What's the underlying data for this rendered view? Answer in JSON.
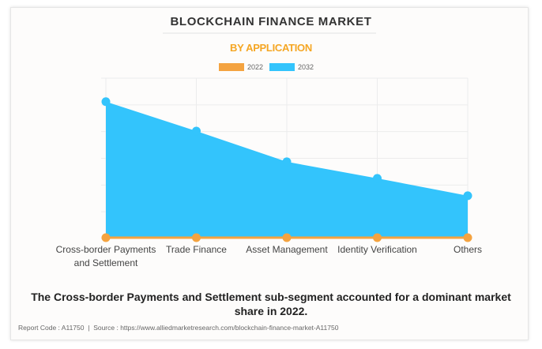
{
  "header": {
    "title": "BLOCKCHAIN FINANCE MARKET",
    "subtitle": "BY APPLICATION"
  },
  "legend": [
    {
      "label": "2022",
      "color": "#f4a340"
    },
    {
      "label": "2032",
      "color": "#33c4fc"
    }
  ],
  "x_labels": [
    {
      "line1": "Cross-border Payments",
      "line2": "and Settlement"
    },
    {
      "line1": "Trade Finance",
      "line2": ""
    },
    {
      "line1": "Asset Management",
      "line2": ""
    },
    {
      "line1": "Identity Verification",
      "line2": ""
    },
    {
      "line1": "Others",
      "line2": ""
    }
  ],
  "caption": "The Cross-border Payments and Settlement sub-segment accounted for a dominant market share in 2022.",
  "footer": {
    "report_code": "Report Code : A11750",
    "separator": "|",
    "source": "Source : https://www.alliedmarketresearch.com/blockchain-finance-market-A11750"
  },
  "chart_data": {
    "type": "area",
    "title": "BLOCKCHAIN FINANCE MARKET",
    "subtitle": "BY APPLICATION",
    "categories": [
      "Cross-border Payments and Settlement",
      "Trade Finance",
      "Asset Management",
      "Identity Verification",
      "Others"
    ],
    "series": [
      {
        "name": "2022",
        "color": "#f4a340",
        "values": [
          0,
          0,
          0,
          0,
          0
        ]
      },
      {
        "name": "2032",
        "color": "#33c4fc",
        "values": [
          5.12,
          4.02,
          2.87,
          2.25,
          1.6
        ]
      }
    ],
    "xlabel": "",
    "ylabel": "",
    "ylim": [
      0,
      6
    ],
    "y_ticks_visible": false,
    "value_units": "relative (gridline units; no y-axis labels shown)",
    "grid": true,
    "grid_lines_y": 6,
    "legend_position": "top"
  }
}
